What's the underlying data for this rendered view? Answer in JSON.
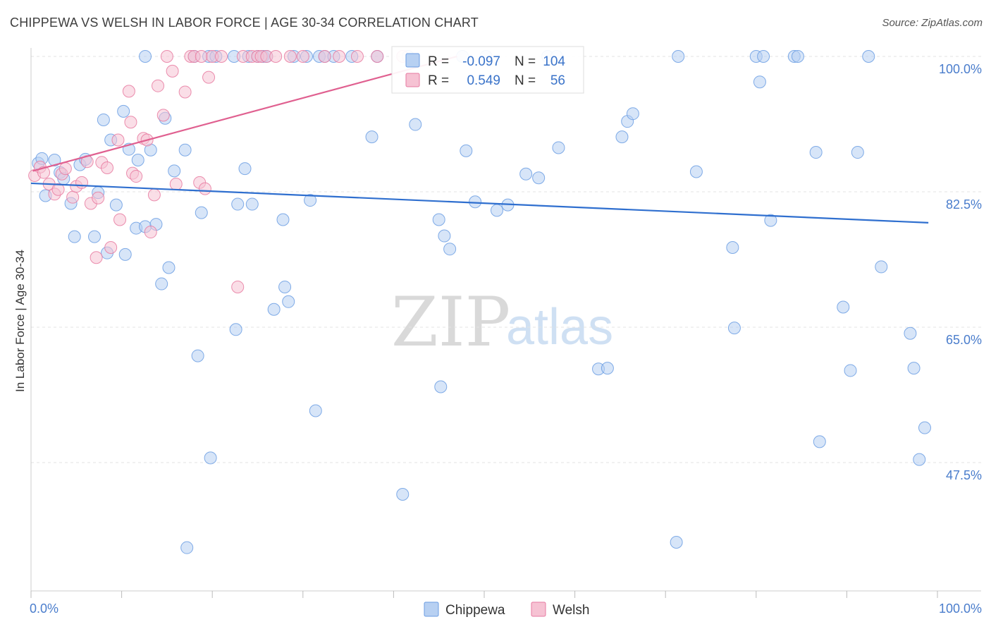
{
  "header": {
    "title": "CHIPPEWA VS WELSH IN LABOR FORCE | AGE 30-34 CORRELATION CHART",
    "source": "Source: ZipAtlas.com"
  },
  "watermark": {
    "zip": "ZIP",
    "atlas": "atlas"
  },
  "legend_stats": [
    {
      "r_label": "R =",
      "r_value": "-0.097",
      "n_label": "N =",
      "n_value": "104",
      "color": "#6b9de3",
      "fill": "#b7d0f2"
    },
    {
      "r_label": "R =",
      "r_value": "0.549",
      "n_label": "N =",
      "n_value": "56",
      "color": "#e77aa0",
      "fill": "#f6c2d3"
    }
  ],
  "chart_data": {
    "type": "scatter",
    "title": "CHIPPEWA VS WELSH IN LABOR FORCE | AGE 30-34 CORRELATION CHART",
    "xlabel": "",
    "ylabel": "In Labor Force | Age 30-34",
    "xlim": [
      0,
      100
    ],
    "ylim": [
      30,
      102
    ],
    "x_tick_labels": [
      {
        "value": 0,
        "label": "0.0%"
      },
      {
        "value": 100,
        "label": "100.0%"
      }
    ],
    "y_tick_labels": [
      {
        "value": 47.5,
        "label": "47.5%"
      },
      {
        "value": 65.0,
        "label": "65.0%"
      },
      {
        "value": 82.5,
        "label": "82.5%"
      },
      {
        "value": 100.0,
        "label": "100.0%"
      }
    ],
    "grid": "horizontal dashed",
    "legend_position": "bottom-center",
    "series": [
      {
        "name": "Chippewa",
        "color": "#6b9de3",
        "fill": "#b7d0f2",
        "trend": {
          "x": [
            0,
            99
          ],
          "y": [
            83.6,
            78.5
          ],
          "color": "#2f6fcf"
        },
        "points": [
          [
            0.8,
            86.2
          ],
          [
            1.2,
            86.8
          ],
          [
            1.6,
            82.0
          ],
          [
            2.6,
            86.6
          ],
          [
            3.2,
            85.0
          ],
          [
            3.6,
            84.2
          ],
          [
            4.4,
            81.0
          ],
          [
            4.8,
            76.7
          ],
          [
            5.4,
            86.0
          ],
          [
            6.0,
            86.7
          ],
          [
            7.0,
            76.7
          ],
          [
            7.4,
            82.4
          ],
          [
            8.0,
            91.8
          ],
          [
            8.4,
            74.6
          ],
          [
            8.8,
            89.2
          ],
          [
            9.4,
            80.8
          ],
          [
            10.2,
            92.9
          ],
          [
            10.4,
            74.4
          ],
          [
            10.8,
            88.0
          ],
          [
            11.6,
            77.8
          ],
          [
            11.8,
            86.6
          ],
          [
            12.6,
            78.0
          ],
          [
            13.2,
            87.9
          ],
          [
            12.6,
            100.0
          ],
          [
            13.8,
            78.3
          ],
          [
            14.4,
            70.6
          ],
          [
            14.8,
            92.0
          ],
          [
            15.2,
            72.7
          ],
          [
            15.8,
            85.2
          ],
          [
            17.0,
            87.9
          ],
          [
            17.2,
            36.5
          ],
          [
            18.0,
            100.0
          ],
          [
            18.4,
            61.3
          ],
          [
            18.8,
            79.8
          ],
          [
            19.6,
            100.0
          ],
          [
            19.8,
            48.1
          ],
          [
            20.4,
            100.0
          ],
          [
            22.4,
            100.0
          ],
          [
            22.6,
            64.7
          ],
          [
            22.8,
            80.9
          ],
          [
            23.6,
            85.5
          ],
          [
            24.0,
            100.0
          ],
          [
            24.4,
            80.9
          ],
          [
            25.0,
            100.0
          ],
          [
            25.6,
            100.0
          ],
          [
            26.0,
            100.0
          ],
          [
            26.8,
            67.3
          ],
          [
            27.8,
            78.9
          ],
          [
            28.0,
            70.2
          ],
          [
            28.4,
            68.3
          ],
          [
            29.0,
            100.0
          ],
          [
            30.4,
            100.0
          ],
          [
            30.8,
            81.4
          ],
          [
            31.4,
            54.2
          ],
          [
            31.8,
            100.0
          ],
          [
            32.4,
            100.0
          ],
          [
            33.4,
            100.0
          ],
          [
            35.4,
            100.0
          ],
          [
            37.6,
            89.6
          ],
          [
            38.2,
            100.0
          ],
          [
            41.0,
            43.4
          ],
          [
            41.6,
            100.0
          ],
          [
            42.4,
            91.2
          ],
          [
            45.0,
            78.9
          ],
          [
            45.2,
            57.3
          ],
          [
            45.6,
            76.8
          ],
          [
            46.2,
            75.1
          ],
          [
            47.6,
            100.0
          ],
          [
            48.0,
            87.8
          ],
          [
            49.0,
            81.2
          ],
          [
            50.2,
            100.0
          ],
          [
            51.4,
            80.1
          ],
          [
            52.6,
            80.8
          ],
          [
            54.6,
            84.8
          ],
          [
            56.0,
            84.3
          ],
          [
            57.0,
            100.0
          ],
          [
            58.0,
            100.0
          ],
          [
            58.2,
            88.2
          ],
          [
            62.6,
            59.6
          ],
          [
            63.6,
            59.7
          ],
          [
            65.2,
            89.6
          ],
          [
            65.8,
            91.6
          ],
          [
            66.4,
            92.6
          ],
          [
            71.2,
            37.2
          ],
          [
            71.4,
            100.0
          ],
          [
            73.4,
            85.1
          ],
          [
            77.4,
            75.3
          ],
          [
            77.6,
            64.9
          ],
          [
            80.0,
            100.0
          ],
          [
            80.4,
            96.7
          ],
          [
            80.8,
            100.0
          ],
          [
            81.6,
            78.8
          ],
          [
            84.2,
            100.0
          ],
          [
            84.6,
            100.0
          ],
          [
            86.6,
            87.6
          ],
          [
            87.0,
            50.2
          ],
          [
            89.6,
            67.6
          ],
          [
            90.4,
            59.4
          ],
          [
            91.2,
            87.6
          ],
          [
            92.4,
            100.0
          ],
          [
            93.8,
            72.8
          ],
          [
            97.0,
            64.2
          ],
          [
            97.4,
            59.7
          ],
          [
            98.0,
            47.9
          ],
          [
            98.6,
            52.0
          ]
        ]
      },
      {
        "name": "Welsh",
        "color": "#e77aa0",
        "fill": "#f6c2d3",
        "trend": {
          "x": [
            0.2,
            47.0
          ],
          "y": [
            85.2,
            100.0
          ],
          "color": "#e06090"
        },
        "points": [
          [
            0.4,
            84.6
          ],
          [
            1.0,
            85.7
          ],
          [
            1.4,
            85.0
          ],
          [
            2.0,
            83.5
          ],
          [
            2.6,
            82.2
          ],
          [
            3.0,
            82.8
          ],
          [
            3.4,
            84.8
          ],
          [
            3.8,
            85.5
          ],
          [
            4.6,
            81.8
          ],
          [
            5.0,
            83.2
          ],
          [
            5.6,
            83.7
          ],
          [
            6.2,
            86.4
          ],
          [
            6.6,
            81.0
          ],
          [
            7.2,
            74.0
          ],
          [
            7.4,
            81.7
          ],
          [
            7.8,
            86.3
          ],
          [
            8.4,
            85.6
          ],
          [
            8.8,
            75.3
          ],
          [
            9.6,
            89.2
          ],
          [
            9.8,
            78.9
          ],
          [
            10.8,
            95.5
          ],
          [
            11.0,
            91.5
          ],
          [
            11.2,
            84.9
          ],
          [
            11.6,
            84.5
          ],
          [
            12.4,
            89.4
          ],
          [
            12.8,
            89.2
          ],
          [
            13.2,
            77.3
          ],
          [
            13.6,
            82.1
          ],
          [
            14.0,
            96.2
          ],
          [
            14.6,
            92.4
          ],
          [
            15.0,
            100.0
          ],
          [
            15.6,
            98.1
          ],
          [
            16.0,
            83.5
          ],
          [
            17.0,
            95.4
          ],
          [
            17.6,
            100.0
          ],
          [
            18.0,
            100.0
          ],
          [
            18.6,
            83.7
          ],
          [
            18.8,
            100.0
          ],
          [
            19.2,
            82.9
          ],
          [
            19.6,
            97.3
          ],
          [
            20.0,
            100.0
          ],
          [
            21.0,
            100.0
          ],
          [
            22.8,
            70.2
          ],
          [
            23.4,
            100.0
          ],
          [
            24.4,
            100.0
          ],
          [
            25.0,
            100.0
          ],
          [
            25.4,
            100.0
          ],
          [
            26.0,
            100.0
          ],
          [
            27.0,
            100.0
          ],
          [
            28.6,
            100.0
          ],
          [
            30.0,
            100.0
          ],
          [
            32.4,
            100.0
          ],
          [
            34.0,
            100.0
          ],
          [
            36.0,
            100.0
          ],
          [
            38.2,
            100.0
          ],
          [
            41.0,
            100.0
          ]
        ]
      }
    ]
  },
  "bottom_legend": [
    {
      "label": "Chippewa",
      "color": "#6b9de3",
      "fill": "#b7d0f2"
    },
    {
      "label": "Welsh",
      "color": "#e77aa0",
      "fill": "#f6c2d3"
    }
  ]
}
